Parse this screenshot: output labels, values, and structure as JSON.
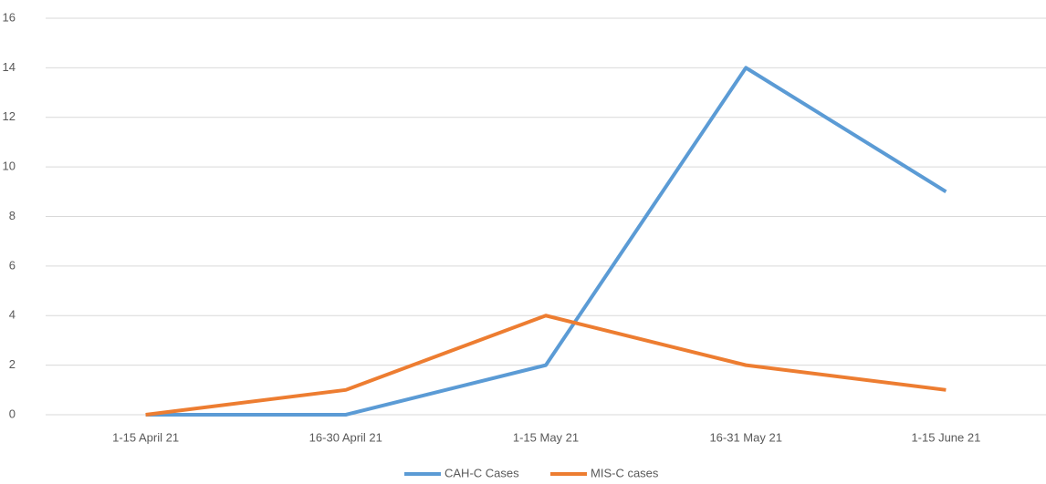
{
  "chart_data": {
    "type": "line",
    "categories": [
      "1-15 April 21",
      "16-30 April 21",
      "1-15 May 21",
      "16-31 May 21",
      "1-15 June 21"
    ],
    "series": [
      {
        "name": "CAH-C Cases",
        "color": "#5b9bd5",
        "values": [
          0,
          0,
          2,
          14,
          9
        ]
      },
      {
        "name": "MIS-C cases",
        "color": "#ed7d31",
        "values": [
          0,
          1,
          4,
          2,
          1
        ]
      }
    ],
    "ylim": [
      0,
      16
    ],
    "yticks": [
      0,
      2,
      4,
      6,
      8,
      10,
      12,
      14,
      16
    ],
    "grid": true,
    "legend": "bottom"
  }
}
